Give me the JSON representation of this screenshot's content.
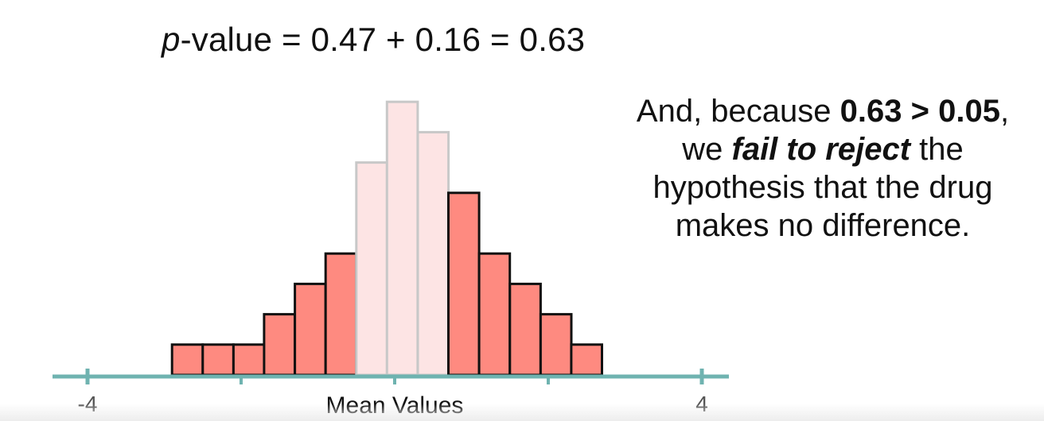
{
  "header": {
    "pvalue_symbol": "p",
    "pvalue_expression": "-value = 0.47 + 0.16 = 0.63"
  },
  "message": {
    "line1_pre": "And, because ",
    "line1_bold": "0.63 > 0.05",
    "line1_post": ",",
    "line2_pre": "we ",
    "line2_emph": "fail to reject",
    "line2_post": " the",
    "line3": "hypothesis that the drug",
    "line4": "makes no difference."
  },
  "colors": {
    "bar_fill": "#fe8a80",
    "bar_stroke": "#111111",
    "bar_fill_light": "#fde4e4",
    "bar_stroke_light": "#c8c8c8",
    "axis": "#6fb3b0"
  },
  "chart_data": {
    "type": "bar",
    "xlabel": "Mean Values",
    "xlim": [
      -4,
      4
    ],
    "x_tick_values": [
      -4,
      -2,
      0,
      2,
      4
    ],
    "x_tick_labels": [
      "-4",
      "",
      "",
      "",
      "4"
    ],
    "bin_width": 0.4,
    "bins": [
      {
        "x0": -2.9,
        "count": 1,
        "highlighted": true
      },
      {
        "x0": -2.5,
        "count": 1,
        "highlighted": true
      },
      {
        "x0": -2.1,
        "count": 1,
        "highlighted": true
      },
      {
        "x0": -1.7,
        "count": 2,
        "highlighted": true
      },
      {
        "x0": -1.3,
        "count": 3,
        "highlighted": true
      },
      {
        "x0": -0.9,
        "count": 4,
        "highlighted": true
      },
      {
        "x0": -0.5,
        "count": 7,
        "highlighted": false
      },
      {
        "x0": -0.1,
        "count": 9,
        "highlighted": false
      },
      {
        "x0": 0.3,
        "count": 8,
        "highlighted": false
      },
      {
        "x0": 0.7,
        "count": 6,
        "highlighted": true
      },
      {
        "x0": 1.1,
        "count": 4,
        "highlighted": true
      },
      {
        "x0": 1.5,
        "count": 3,
        "highlighted": true
      },
      {
        "x0": 1.9,
        "count": 2,
        "highlighted": true
      },
      {
        "x0": 2.3,
        "count": 1,
        "highlighted": true
      }
    ]
  }
}
